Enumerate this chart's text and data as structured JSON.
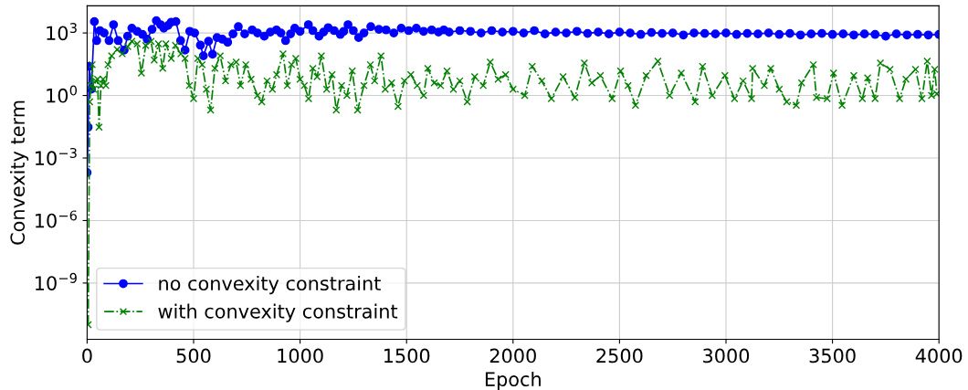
{
  "chart_data": {
    "type": "line",
    "xlabel": "Epoch",
    "ylabel": "Convexity term",
    "log": "y",
    "grid": true,
    "legend": "bottom left",
    "xlim": [
      0,
      4000
    ],
    "xticks": [
      0,
      500,
      1000,
      1500,
      2000,
      2500,
      3000,
      3500,
      4000
    ],
    "ylim": [
      2e-12,
      20000.0
    ],
    "yticks": [
      {
        "value": 1e-09,
        "label": "10$^{−9}$"
      },
      {
        "value": 1e-06,
        "label": "10$^{−6}$"
      },
      {
        "value": 0.001,
        "label": "10$^{−3}$"
      },
      {
        "value": 1,
        "label": "10$^{0}$"
      },
      {
        "value": 1000,
        "label": "10$^{3}$"
      }
    ],
    "series": [
      {
        "name": "no convexity constraint",
        "color": "#0000ff",
        "marker": "circle",
        "line_style": "solid",
        "x": [
          0,
          5,
          10,
          20,
          34,
          45,
          60,
          80,
          103,
          124,
          146,
          174,
          190,
          210,
          235,
          260,
          282,
          305,
          325,
          345,
          360,
          380,
          395,
          417,
          439,
          460,
          482,
          505,
          532,
          546,
          570,
          589,
          610,
          635,
          660,
          685,
          710,
          740,
          775,
          800,
          832,
          860,
          889,
          910,
          932,
          955,
          975,
          1000,
          1039,
          1060,
          1089,
          1110,
          1132,
          1160,
          1189,
          1205,
          1225,
          1250,
          1275,
          1300,
          1332,
          1370,
          1404,
          1440,
          1475,
          1510,
          1546,
          1580,
          1618,
          1650,
          1675,
          1700,
          1750,
          1800,
          1850,
          1900,
          1950,
          2000,
          2050,
          2100,
          2150,
          2200,
          2250,
          2300,
          2350,
          2400,
          2450,
          2500,
          2550,
          2600,
          2650,
          2700,
          2750,
          2800,
          2850,
          2900,
          2950,
          3000,
          3050,
          3100,
          3150,
          3200,
          3250,
          3300,
          3350,
          3400,
          3450,
          3500,
          3550,
          3600,
          3650,
          3700,
          3750,
          3800,
          3850,
          3900,
          3950,
          4000
        ],
        "values": [
          0.0002,
          0.03,
          25,
          2,
          3500,
          430,
          1300,
          1000,
          430,
          2500,
          430,
          150,
          700,
          1700,
          1200,
          850,
          500,
          1500,
          3900,
          2500,
          1700,
          2300,
          3300,
          3500,
          430,
          150,
          1200,
          1000,
          260,
          80,
          400,
          95,
          600,
          500,
          360,
          900,
          2000,
          900,
          1400,
          1000,
          700,
          1100,
          1400,
          1000,
          430,
          900,
          1700,
          1200,
          2500,
          1300,
          700,
          1100,
          1800,
          1300,
          850,
          1200,
          2500,
          1300,
          600,
          1000,
          2000,
          1500,
          1400,
          1000,
          1700,
          1300,
          1700,
          1200,
          1400,
          1100,
          1400,
          1100,
          1300,
          1200,
          1000,
          1300,
          1100,
          1200,
          1000,
          1300,
          900,
          1100,
          1000,
          1200,
          950,
          1100,
          900,
          1100,
          1000,
          850,
          1050,
          950,
          1000,
          800,
          1000,
          950,
          900,
          1000,
          850,
          950,
          900,
          1000,
          850,
          950,
          800,
          900,
          950,
          850,
          900,
          800,
          900,
          850,
          700,
          900,
          800,
          850,
          800,
          850
        ]
      },
      {
        "name": "with convexity constraint",
        "color": "#008000",
        "marker": "cross",
        "line_style": "dashdot",
        "x": [
          5,
          12,
          18,
          24,
          30,
          40,
          49,
          56,
          65,
          75,
          88,
          98,
          115,
          141,
          165,
          191,
          210,
          235,
          255,
          275,
          300,
          315,
          335,
          355,
          370,
          395,
          415,
          440,
          460,
          480,
          500,
          520,
          540,
          560,
          580,
          600,
          625,
          650,
          675,
          700,
          720,
          745,
          770,
          800,
          820,
          845,
          870,
          890,
          920,
          940,
          960,
          980,
          1000,
          1020,
          1040,
          1060,
          1080,
          1100,
          1125,
          1150,
          1170,
          1195,
          1220,
          1245,
          1270,
          1300,
          1330,
          1350,
          1380,
          1400,
          1430,
          1460,
          1490,
          1520,
          1550,
          1580,
          1600,
          1630,
          1660,
          1690,
          1720,
          1750,
          1785,
          1820,
          1860,
          1893,
          1930,
          1965,
          2000,
          2055,
          2090,
          2135,
          2180,
          2235,
          2290,
          2335,
          2370,
          2410,
          2465,
          2505,
          2540,
          2575,
          2625,
          2680,
          2735,
          2790,
          2855,
          2890,
          2935,
          2995,
          3040,
          3080,
          3120,
          3125,
          3180,
          3210,
          3250,
          3285,
          3330,
          3355,
          3410,
          3425,
          3475,
          3505,
          3545,
          3600,
          3640,
          3665,
          3700,
          3725,
          3770,
          3815,
          3845,
          3890,
          3920,
          3945,
          3965,
          3980,
          3990
        ],
        "values": [
          1e-11,
          0.5,
          3,
          30,
          2,
          5,
          6,
          0.03,
          3,
          6,
          3,
          30,
          80,
          160,
          100,
          220,
          400,
          300,
          12,
          250,
          400,
          50,
          300,
          20,
          300,
          60,
          250,
          100,
          60,
          3,
          0.7,
          60,
          30,
          2,
          0.2,
          20,
          80,
          5,
          30,
          40,
          3,
          30,
          6,
          1,
          0.5,
          5,
          2,
          10,
          100,
          3,
          30,
          60,
          6,
          3,
          0.7,
          20,
          8,
          80,
          2,
          10,
          0.2,
          3,
          1,
          15,
          0.2,
          3,
          30,
          5,
          80,
          2,
          4,
          0.3,
          5,
          10,
          3,
          1,
          20,
          4,
          3,
          15,
          2,
          5,
          0.5,
          8,
          3,
          40,
          6,
          10,
          2,
          1,
          25,
          5,
          0.7,
          8,
          0.8,
          36,
          4,
          9,
          0.7,
          15,
          3,
          0.34,
          9,
          44,
          1,
          12,
          0.5,
          25,
          1,
          9,
          0.7,
          5,
          0.7,
          20,
          3,
          20,
          2,
          0.5,
          0.34,
          4,
          30,
          0.8,
          0.7,
          12,
          0.34,
          9,
          0.7,
          7,
          0.7,
          36,
          18,
          0.7,
          6,
          18,
          0.7,
          44,
          1,
          18,
          1.2
        ]
      }
    ]
  }
}
